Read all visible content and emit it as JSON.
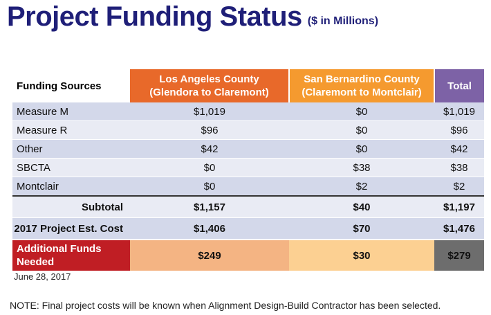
{
  "title": "Project Funding Status",
  "subtitle": "($ in Millions)",
  "table": {
    "headers": {
      "source": "Funding Sources",
      "la_line1": "Los Angeles County",
      "la_line2": "(Glendora to Claremont)",
      "sb_line1": "San Bernardino County",
      "sb_line2": "(Claremont to Montclair)",
      "total": "Total"
    },
    "rows": [
      {
        "source": "Measure M",
        "la": "$1,019",
        "sb": "$0",
        "total": "$1,019"
      },
      {
        "source": "Measure R",
        "la": "$96",
        "sb": "$0",
        "total": "$96"
      },
      {
        "source": "Other",
        "la": "$42",
        "sb": "$0",
        "total": "$42"
      },
      {
        "source": "SBCTA",
        "la": "$0",
        "sb": "$38",
        "total": "$38"
      },
      {
        "source": "Montclair",
        "la": "$0",
        "sb": "$2",
        "total": "$2"
      }
    ],
    "subtotal": {
      "label": "Subtotal",
      "la": "$1,157",
      "sb": "$40",
      "total": "$1,197"
    },
    "estimate": {
      "label": "2017 Project Est. Cost",
      "la": "$1,406",
      "sb": "$70",
      "total": "$1,476"
    },
    "additional": {
      "label_line1": "Additional Funds",
      "label_line2": "Needed",
      "la": "$249",
      "sb": "$30",
      "total": "$279"
    }
  },
  "date": "June 28, 2017",
  "note": "NOTE: Final project costs will be known when Alignment Design-Build Contractor has been selected.",
  "colors": {
    "title": "#1f1f78",
    "la_header": "#e8692a",
    "sb_header": "#f59a2f",
    "total_header": "#7d62a6",
    "additional_label": "#c01e24"
  }
}
